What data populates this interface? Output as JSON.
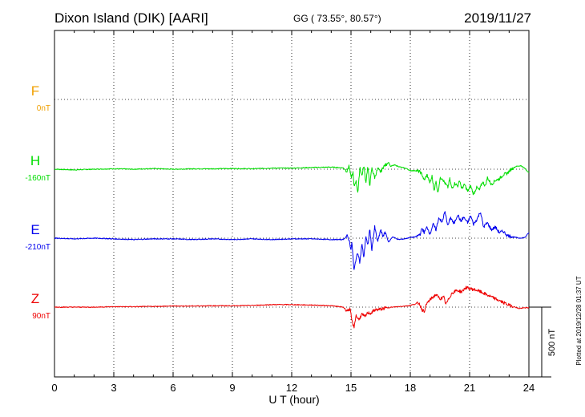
{
  "chart_data": {
    "type": "line",
    "title": "Dixon Island (DIK)  [AARI]",
    "coords": "GG ( 73.55°,  80.57°)",
    "date": "2019/11/27",
    "xlabel": "U T (hour)",
    "xlim": [
      0,
      24
    ],
    "x_ticks": [
      "0",
      "3",
      "6",
      "9",
      "12",
      "15",
      "18",
      "21",
      "24"
    ],
    "scale_label": "500 nT",
    "scale_nT": 500,
    "units_per_row_nT": 500,
    "plotted_note": "Plotted at 2019/12/28 01:37 UT",
    "grid": "dotted",
    "series": [
      {
        "name": "F",
        "baseline_label": "0nT",
        "color": "#f0a000",
        "points": []
      },
      {
        "name": "H",
        "baseline_label": "-160nT",
        "color": "#00dd00",
        "points": [
          [
            0,
            0
          ],
          [
            1,
            -5
          ],
          [
            2,
            0
          ],
          [
            3,
            3
          ],
          [
            4,
            0
          ],
          [
            5,
            5
          ],
          [
            6,
            0
          ],
          [
            7,
            3
          ],
          [
            8,
            3
          ],
          [
            9,
            5
          ],
          [
            10,
            3
          ],
          [
            11,
            8
          ],
          [
            12,
            8
          ],
          [
            13,
            12
          ],
          [
            14,
            15
          ],
          [
            14.6,
            10
          ],
          [
            14.8,
            -15
          ],
          [
            14.9,
            25
          ],
          [
            15.0,
            -60
          ],
          [
            15.1,
            -25
          ],
          [
            15.15,
            -130
          ],
          [
            15.25,
            -80
          ],
          [
            15.35,
            -170
          ],
          [
            15.45,
            20
          ],
          [
            15.55,
            -50
          ],
          [
            15.65,
            25
          ],
          [
            15.75,
            -100
          ],
          [
            15.85,
            20
          ],
          [
            15.95,
            -120
          ],
          [
            16.05,
            10
          ],
          [
            16.2,
            -60
          ],
          [
            16.35,
            5
          ],
          [
            16.5,
            -20
          ],
          [
            16.65,
            20
          ],
          [
            16.8,
            35
          ],
          [
            16.9,
            50
          ],
          [
            17.0,
            20
          ],
          [
            17.2,
            30
          ],
          [
            17.5,
            15
          ],
          [
            17.8,
            5
          ],
          [
            18.0,
            -10
          ],
          [
            18.3,
            -10
          ],
          [
            18.5,
            -20
          ],
          [
            18.6,
            -40
          ],
          [
            18.7,
            -80
          ],
          [
            18.85,
            -40
          ],
          [
            19.0,
            -100
          ],
          [
            19.1,
            -50
          ],
          [
            19.2,
            -150
          ],
          [
            19.3,
            -90
          ],
          [
            19.4,
            -170
          ],
          [
            19.5,
            -70
          ],
          [
            19.6,
            -60
          ],
          [
            19.75,
            -100
          ],
          [
            19.9,
            -130
          ],
          [
            20.0,
            -70
          ],
          [
            20.1,
            -140
          ],
          [
            20.25,
            -100
          ],
          [
            20.4,
            -120
          ],
          [
            20.5,
            -80
          ],
          [
            20.6,
            -140
          ],
          [
            20.75,
            -110
          ],
          [
            20.9,
            -160
          ],
          [
            21.05,
            -120
          ],
          [
            21.2,
            -180
          ],
          [
            21.35,
            -130
          ],
          [
            21.5,
            -150
          ],
          [
            21.65,
            -90
          ],
          [
            21.8,
            -120
          ],
          [
            21.9,
            -60
          ],
          [
            22.1,
            -110
          ],
          [
            22.3,
            -80
          ],
          [
            22.5,
            -70
          ],
          [
            22.7,
            -40
          ],
          [
            22.9,
            -30
          ],
          [
            23.1,
            0
          ],
          [
            23.35,
            20
          ],
          [
            23.6,
            25
          ],
          [
            23.8,
            5
          ],
          [
            24.0,
            -25
          ]
        ]
      },
      {
        "name": "E",
        "baseline_label": "-210nT",
        "color": "#0000ee",
        "points": [
          [
            0,
            0
          ],
          [
            1,
            -5
          ],
          [
            2,
            0
          ],
          [
            3,
            -5
          ],
          [
            4,
            -10
          ],
          [
            5,
            -5
          ],
          [
            6,
            -5
          ],
          [
            7,
            -10
          ],
          [
            8,
            -5
          ],
          [
            9,
            -10
          ],
          [
            10,
            -5
          ],
          [
            11,
            -10
          ],
          [
            12,
            -5
          ],
          [
            13,
            -5
          ],
          [
            14,
            -10
          ],
          [
            14.6,
            -10
          ],
          [
            14.8,
            15
          ],
          [
            14.9,
            -10
          ],
          [
            15.0,
            -80
          ],
          [
            15.05,
            -30
          ],
          [
            15.15,
            -240
          ],
          [
            15.25,
            -150
          ],
          [
            15.35,
            -100
          ],
          [
            15.45,
            -180
          ],
          [
            15.55,
            -40
          ],
          [
            15.65,
            -140
          ],
          [
            15.75,
            20
          ],
          [
            15.85,
            -60
          ],
          [
            15.95,
            70
          ],
          [
            16.05,
            -90
          ],
          [
            16.2,
            80
          ],
          [
            16.35,
            -30
          ],
          [
            16.5,
            60
          ],
          [
            16.6,
            15
          ],
          [
            16.75,
            40
          ],
          [
            16.9,
            -30
          ],
          [
            17.1,
            10
          ],
          [
            17.4,
            -10
          ],
          [
            17.7,
            -5
          ],
          [
            18.0,
            5
          ],
          [
            18.3,
            10
          ],
          [
            18.5,
            30
          ],
          [
            18.6,
            70
          ],
          [
            18.7,
            40
          ],
          [
            18.85,
            80
          ],
          [
            19.0,
            30
          ],
          [
            19.15,
            100
          ],
          [
            19.3,
            60
          ],
          [
            19.45,
            150
          ],
          [
            19.6,
            110
          ],
          [
            19.75,
            190
          ],
          [
            19.9,
            90
          ],
          [
            20.05,
            150
          ],
          [
            20.2,
            100
          ],
          [
            20.4,
            170
          ],
          [
            20.55,
            120
          ],
          [
            20.7,
            150
          ],
          [
            20.9,
            110
          ],
          [
            21.05,
            160
          ],
          [
            21.2,
            100
          ],
          [
            21.35,
            130
          ],
          [
            21.55,
            190
          ],
          [
            21.7,
            80
          ],
          [
            21.9,
            110
          ],
          [
            22.1,
            60
          ],
          [
            22.3,
            80
          ],
          [
            22.5,
            40
          ],
          [
            22.7,
            50
          ],
          [
            22.9,
            20
          ],
          [
            23.2,
            10
          ],
          [
            23.5,
            0
          ],
          [
            23.8,
            5
          ],
          [
            24.0,
            40
          ]
        ]
      },
      {
        "name": "Z",
        "baseline_label": "90nT",
        "color": "#ee0000",
        "points": [
          [
            0,
            0
          ],
          [
            1,
            0
          ],
          [
            2,
            0
          ],
          [
            3,
            3
          ],
          [
            4,
            3
          ],
          [
            5,
            5
          ],
          [
            6,
            8
          ],
          [
            7,
            8
          ],
          [
            8,
            10
          ],
          [
            9,
            10
          ],
          [
            10,
            12
          ],
          [
            11,
            18
          ],
          [
            12,
            18
          ],
          [
            13,
            15
          ],
          [
            14,
            10
          ],
          [
            14.6,
            0
          ],
          [
            14.8,
            -25
          ],
          [
            14.95,
            -15
          ],
          [
            15.05,
            -100
          ],
          [
            15.15,
            -150
          ],
          [
            15.25,
            -60
          ],
          [
            15.4,
            -90
          ],
          [
            15.55,
            -50
          ],
          [
            15.7,
            -70
          ],
          [
            15.85,
            -40
          ],
          [
            16.0,
            -45
          ],
          [
            16.2,
            -20
          ],
          [
            16.5,
            -15
          ],
          [
            16.8,
            -5
          ],
          [
            17.1,
            0
          ],
          [
            17.5,
            5
          ],
          [
            17.9,
            10
          ],
          [
            18.2,
            20
          ],
          [
            18.45,
            30
          ],
          [
            18.6,
            -20
          ],
          [
            18.7,
            -30
          ],
          [
            18.85,
            30
          ],
          [
            19.05,
            60
          ],
          [
            19.3,
            90
          ],
          [
            19.5,
            60
          ],
          [
            19.7,
            70
          ],
          [
            19.8,
            20
          ],
          [
            19.95,
            60
          ],
          [
            20.1,
            100
          ],
          [
            20.35,
            120
          ],
          [
            20.6,
            110
          ],
          [
            20.8,
            140
          ],
          [
            21.1,
            130
          ],
          [
            21.4,
            120
          ],
          [
            21.7,
            100
          ],
          [
            22.0,
            80
          ],
          [
            22.3,
            60
          ],
          [
            22.6,
            40
          ],
          [
            22.9,
            20
          ],
          [
            23.2,
            5
          ],
          [
            23.5,
            -10
          ],
          [
            23.8,
            -5
          ],
          [
            24.0,
            -5
          ]
        ]
      }
    ]
  }
}
